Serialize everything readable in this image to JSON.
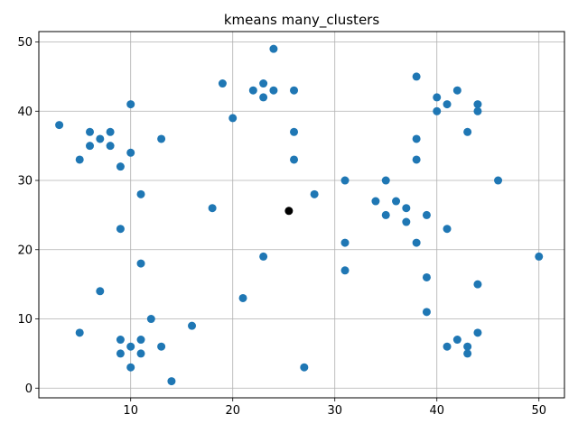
{
  "chart_data": {
    "type": "scatter",
    "title": "kmeans many_clusters",
    "xlabel": "",
    "ylabel": "",
    "xlim": [
      1,
      52.5
    ],
    "ylim": [
      -1.4,
      51.5
    ],
    "x_ticks": [
      10,
      20,
      30,
      40,
      50
    ],
    "y_ticks": [
      0,
      10,
      20,
      30,
      40,
      50
    ],
    "grid": true,
    "point_color": "#1f77b4",
    "centroid_color": "#000000",
    "points": [
      [
        3,
        38
      ],
      [
        5,
        33
      ],
      [
        6,
        37
      ],
      [
        6,
        35
      ],
      [
        7,
        36
      ],
      [
        8,
        37
      ],
      [
        8,
        35
      ],
      [
        9,
        32
      ],
      [
        10,
        41
      ],
      [
        10,
        34
      ],
      [
        11,
        28
      ],
      [
        13,
        36
      ],
      [
        9,
        23
      ],
      [
        11,
        18
      ],
      [
        7,
        14
      ],
      [
        5,
        8
      ],
      [
        12,
        10
      ],
      [
        9,
        7
      ],
      [
        10,
        6
      ],
      [
        11,
        7
      ],
      [
        9,
        5
      ],
      [
        11,
        5
      ],
      [
        10,
        3
      ],
      [
        13,
        6
      ],
      [
        16,
        9
      ],
      [
        14,
        1
      ],
      [
        19,
        44
      ],
      [
        20,
        39
      ],
      [
        22,
        43
      ],
      [
        23,
        44
      ],
      [
        23,
        42
      ],
      [
        24,
        49
      ],
      [
        24,
        43
      ],
      [
        26,
        43
      ],
      [
        26,
        37
      ],
      [
        26,
        33
      ],
      [
        18,
        26
      ],
      [
        28,
        28
      ],
      [
        23,
        19
      ],
      [
        21,
        13
      ],
      [
        27,
        3
      ],
      [
        31,
        30
      ],
      [
        31,
        21
      ],
      [
        31,
        17
      ],
      [
        34,
        27
      ],
      [
        35,
        30
      ],
      [
        35,
        25
      ],
      [
        36,
        27
      ],
      [
        37,
        26
      ],
      [
        37,
        24
      ],
      [
        38,
        21
      ],
      [
        39,
        25
      ],
      [
        38,
        36
      ],
      [
        38,
        33
      ],
      [
        38,
        45
      ],
      [
        40,
        42
      ],
      [
        40,
        40
      ],
      [
        41,
        41
      ],
      [
        42,
        43
      ],
      [
        43,
        37
      ],
      [
        44,
        41
      ],
      [
        44,
        40
      ],
      [
        46,
        30
      ],
      [
        41,
        23
      ],
      [
        39,
        16
      ],
      [
        39,
        11
      ],
      [
        50,
        19
      ],
      [
        44,
        15
      ],
      [
        44,
        8
      ],
      [
        42,
        7
      ],
      [
        41,
        6
      ],
      [
        43,
        6
      ],
      [
        43,
        5
      ]
    ],
    "centroid": [
      25.5,
      25.6
    ]
  }
}
